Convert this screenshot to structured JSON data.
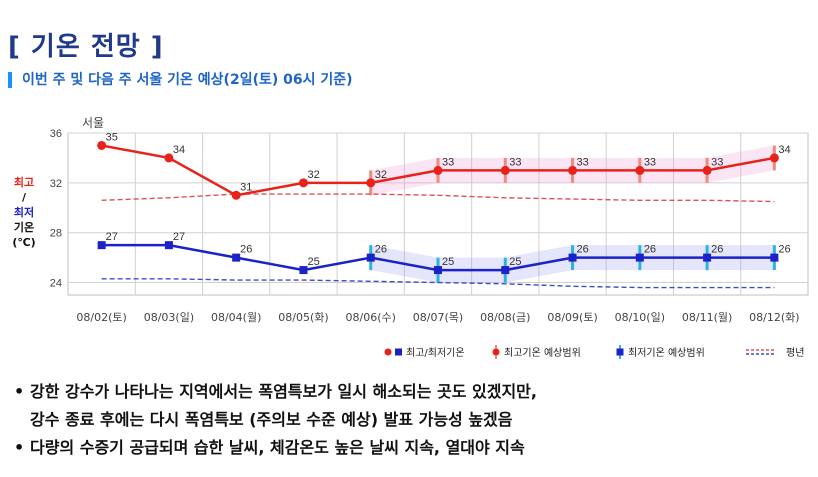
{
  "header": {
    "title": "[ 기온 전망 ]",
    "subtitle": "이번 주 및 다음 주 서울 기온 예상(2일(토) 06시 기준)"
  },
  "chart_data": {
    "type": "line",
    "title": "서울",
    "ylabel_lines": [
      "최고",
      "/",
      "최저",
      "기온",
      "(℃)"
    ],
    "ylim": [
      23,
      36
    ],
    "yticks": [
      24,
      28,
      32,
      36
    ],
    "categories": [
      "08/02(토)",
      "08/03(일)",
      "08/04(월)",
      "08/05(화)",
      "08/06(수)",
      "08/07(목)",
      "08/08(금)",
      "08/09(토)",
      "08/10(일)",
      "08/11(월)",
      "08/12(화)"
    ],
    "series": [
      {
        "name": "최고기온",
        "values": [
          35,
          34,
          31,
          32,
          32,
          33,
          33,
          33,
          33,
          33,
          34
        ],
        "color": "#e8221b"
      },
      {
        "name": "최저기온",
        "values": [
          27,
          27,
          26,
          25,
          26,
          25,
          25,
          26,
          26,
          26,
          26
        ],
        "color": "#1a22c8"
      }
    ],
    "normal_high": [
      30.6,
      30.8,
      31.1,
      31.1,
      31.1,
      31.0,
      30.8,
      30.7,
      30.6,
      30.6,
      30.5
    ],
    "normal_low": [
      24.3,
      24.3,
      24.2,
      24.2,
      24.1,
      24.0,
      23.9,
      23.7,
      23.6,
      23.6,
      23.6
    ],
    "high_range": [
      null,
      null,
      null,
      null,
      [
        31,
        33
      ],
      [
        32,
        34
      ],
      [
        32,
        34
      ],
      [
        32,
        34
      ],
      [
        32,
        34
      ],
      [
        32,
        34
      ],
      [
        33,
        35
      ]
    ],
    "low_range": [
      null,
      null,
      null,
      null,
      [
        25,
        27
      ],
      [
        24,
        26
      ],
      [
        24,
        26
      ],
      [
        25,
        27
      ],
      [
        25,
        27
      ],
      [
        25,
        27
      ],
      [
        25,
        27
      ]
    ],
    "legend": {
      "position": "bottom-right",
      "items": [
        "최고/최저기온",
        "최고기온 예상범위",
        "최저기온 예상범위",
        "평년"
      ]
    },
    "grid": true
  },
  "notes": [
    "강한 강수가 나타나는 지역에서는 폭염특보가 일시 해소되는 곳도 있겠지만,",
    "강수 종료 후에는 다시 폭염특보 (주의보 수준 예상) 발표 가능성 높겠음",
    "다량의 수증기 공급되며 습한 날씨, 체감온도 높은 날씨 지속, 열대야 지속"
  ],
  "bullet_glyph": "•"
}
